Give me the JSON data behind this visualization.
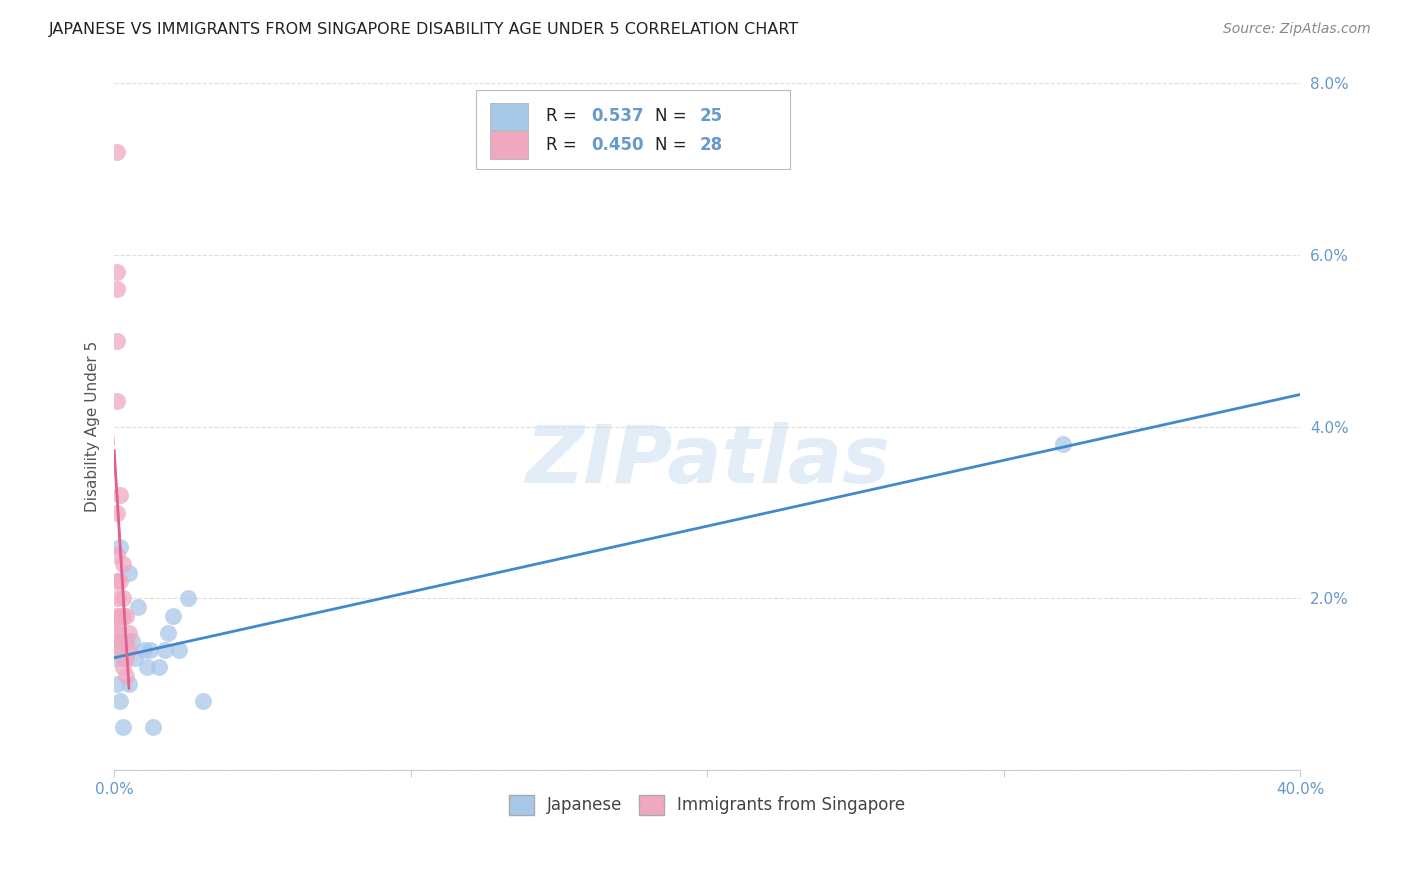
{
  "title": "JAPANESE VS IMMIGRANTS FROM SINGAPORE DISABILITY AGE UNDER 5 CORRELATION CHART",
  "source": "Source: ZipAtlas.com",
  "ylabel": "Disability Age Under 5",
  "xlim": [
    0.0,
    0.4
  ],
  "ylim": [
    0.0,
    0.08
  ],
  "xtick_positions": [
    0.0,
    0.4
  ],
  "xtick_labels": [
    "0.0%",
    "40.0%"
  ],
  "ytick_positions": [
    0.0,
    0.02,
    0.04,
    0.06,
    0.08
  ],
  "ytick_labels": [
    "",
    "2.0%",
    "4.0%",
    "6.0%",
    "8.0%"
  ],
  "r_japanese": 0.537,
  "n_japanese": 25,
  "r_singapore": 0.45,
  "n_singapore": 28,
  "blue_color": "#A8C8E8",
  "pink_color": "#F0A8C0",
  "blue_line_color": "#4488CC",
  "pink_line_color": "#E06090",
  "grid_color": "#DDDDDD",
  "background_color": "#FFFFFF",
  "watermark_color": "#C8DCF0",
  "tick_color": "#6699CC",
  "japanese_x": [
    0.001,
    0.001,
    0.002,
    0.002,
    0.003,
    0.003,
    0.004,
    0.005,
    0.005,
    0.006,
    0.007,
    0.008,
    0.01,
    0.011,
    0.012,
    0.013,
    0.015,
    0.017,
    0.018,
    0.02,
    0.022,
    0.025,
    0.03,
    0.32,
    0.002
  ],
  "japanese_y": [
    0.01,
    0.013,
    0.008,
    0.026,
    0.013,
    0.005,
    0.015,
    0.023,
    0.01,
    0.015,
    0.013,
    0.019,
    0.014,
    0.012,
    0.014,
    0.005,
    0.012,
    0.014,
    0.016,
    0.018,
    0.014,
    0.02,
    0.008,
    0.038,
    0.015
  ],
  "singapore_x": [
    0.001,
    0.001,
    0.001,
    0.001,
    0.001,
    0.001,
    0.001,
    0.001,
    0.001,
    0.001,
    0.001,
    0.001,
    0.001,
    0.001,
    0.002,
    0.002,
    0.002,
    0.003,
    0.003,
    0.003,
    0.003,
    0.003,
    0.004,
    0.004,
    0.004,
    0.004,
    0.005,
    0.005
  ],
  "singapore_y": [
    0.072,
    0.058,
    0.056,
    0.05,
    0.043,
    0.03,
    0.025,
    0.022,
    0.02,
    0.018,
    0.017,
    0.016,
    0.015,
    0.014,
    0.032,
    0.022,
    0.018,
    0.024,
    0.02,
    0.018,
    0.015,
    0.012,
    0.018,
    0.015,
    0.013,
    0.011,
    0.016,
    0.014
  ]
}
